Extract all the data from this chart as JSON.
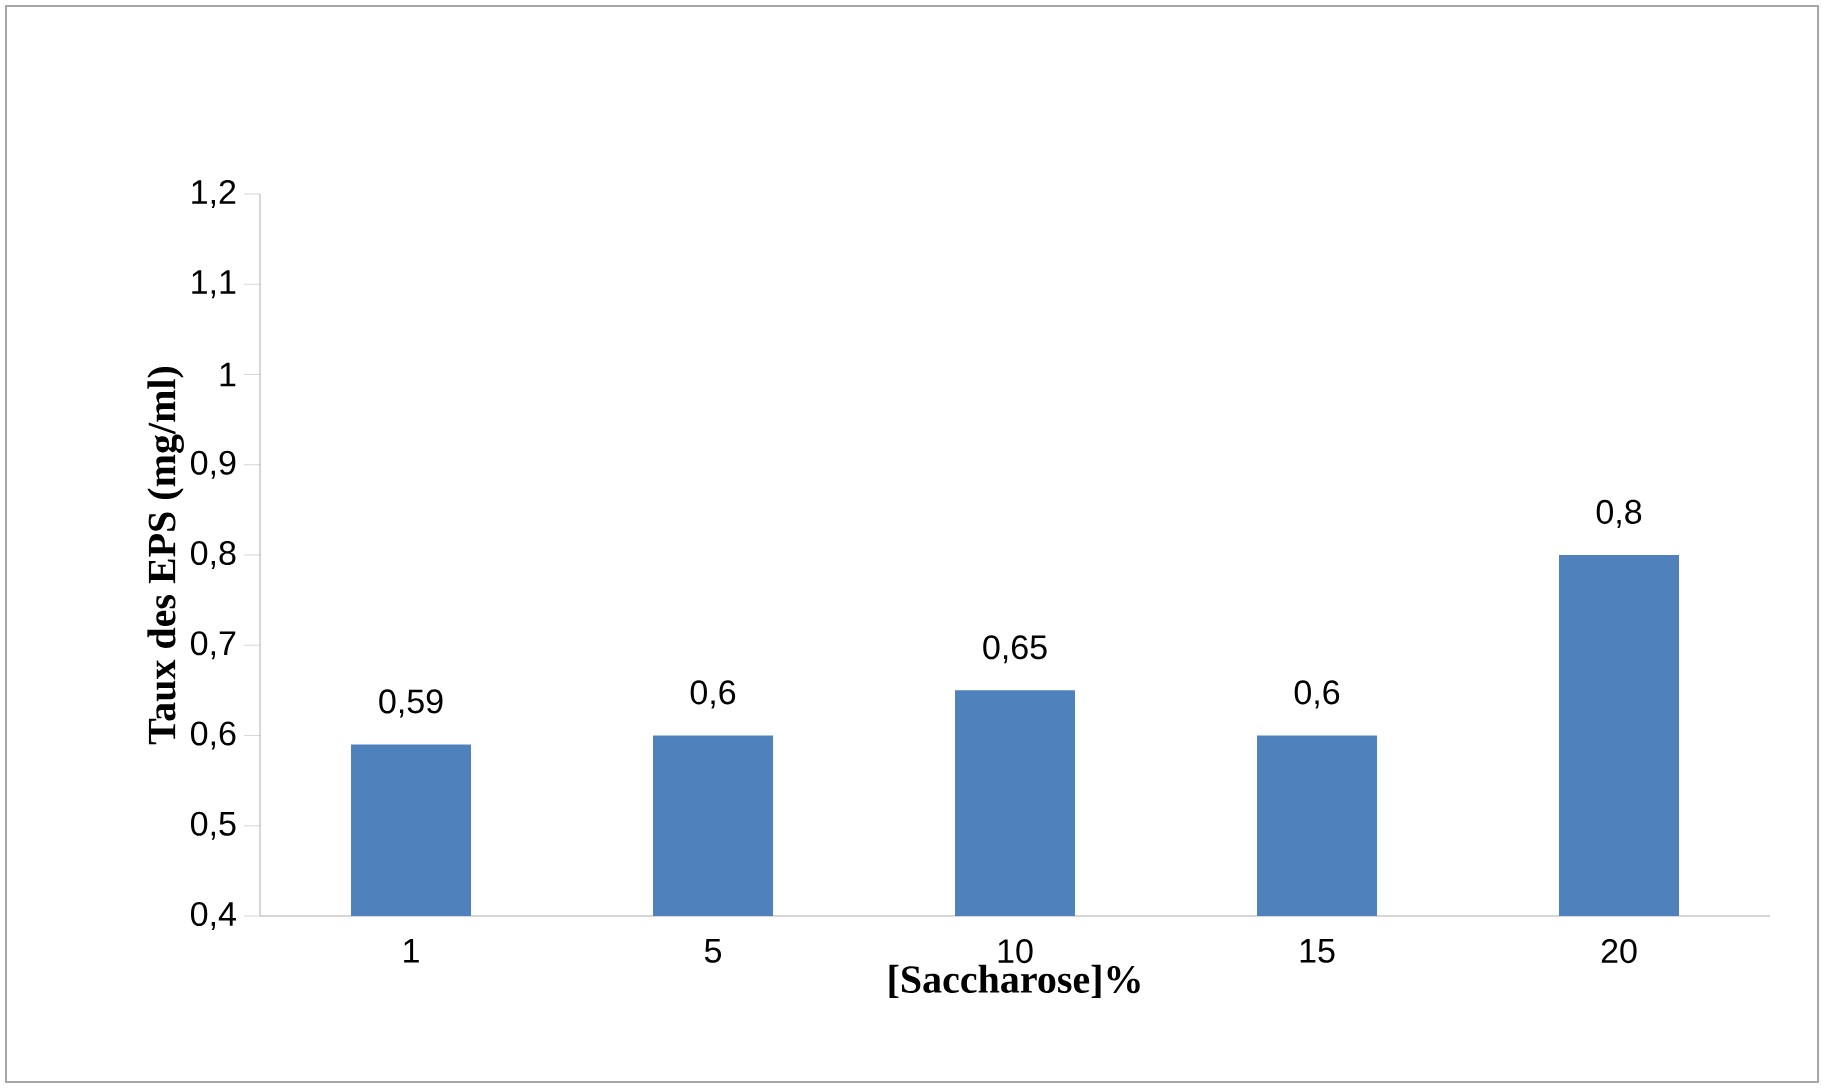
{
  "chart_data": {
    "type": "bar",
    "categories": [
      "1",
      "5",
      "10",
      "15",
      "20"
    ],
    "values": [
      0.59,
      0.6,
      0.65,
      0.6,
      0.8
    ],
    "value_labels": [
      "0,59",
      "0,6",
      "0,65",
      "0,6",
      "0,8"
    ],
    "color": "#4f81bd",
    "xlabel": "[Saccharose]%",
    "ylabel": "Taux des EPS (mg/ml)",
    "ylim": [
      0.4,
      1.2
    ],
    "yticks": [
      {
        "value": 0.4,
        "label": "0,4"
      },
      {
        "value": 0.5,
        "label": "0,5"
      },
      {
        "value": 0.6,
        "label": "0,6"
      },
      {
        "value": 0.7,
        "label": "0,7"
      },
      {
        "value": 0.8,
        "label": "0,8"
      },
      {
        "value": 0.9,
        "label": "0,9"
      },
      {
        "value": 1,
        "label": "1"
      },
      {
        "value": 1.1,
        "label": "1,1"
      },
      {
        "value": 1.2,
        "label": "1,2"
      }
    ],
    "grid": false
  }
}
